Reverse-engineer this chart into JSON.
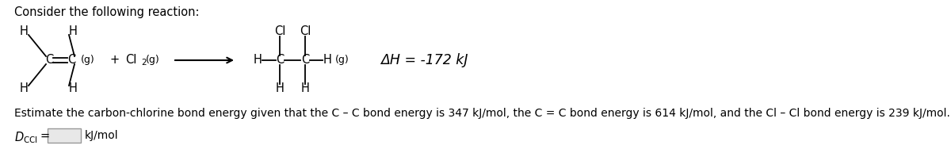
{
  "title": "Consider the following reaction:",
  "background_color": "#ffffff",
  "text_color": "#000000",
  "fig_width": 12.0,
  "fig_height": 1.88,
  "dpi": 100,
  "bottom_text": "Estimate the carbon-chlorine bond energy given that the C – C bond energy is 347 kJ/mol, the C = C bond energy is 614 kJ/mol, and the Cl – Cl bond energy is 239 kJ/mol.",
  "delta_h": "ΔH = -172 kJ",
  "font_size": 10.5
}
